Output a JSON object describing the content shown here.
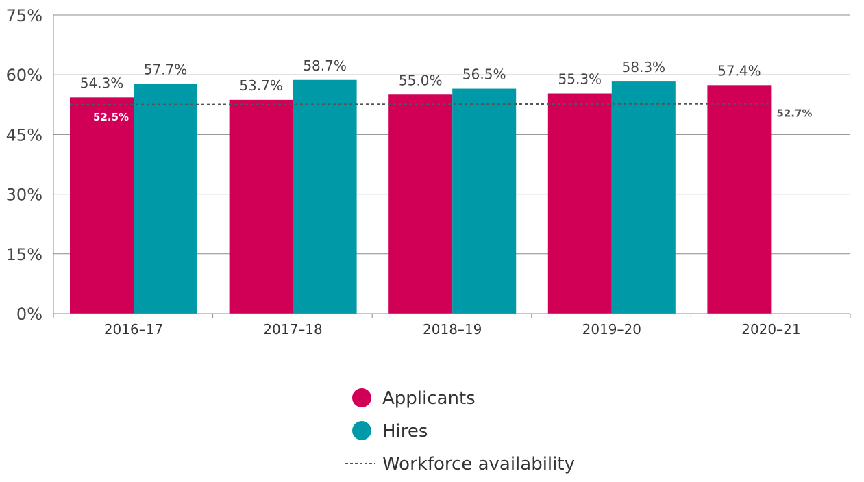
{
  "chart_data": {
    "type": "bar",
    "categories": [
      "2016–17",
      "2017–18",
      "2018–19",
      "2019–20",
      "2020–21"
    ],
    "series": [
      {
        "name": "Applicants",
        "color": "#d10056",
        "values": [
          54.3,
          53.7,
          55.0,
          55.3,
          57.4
        ],
        "labels": [
          "54.3%",
          "53.7%",
          "55.0%",
          "55.3%",
          "57.4%"
        ]
      },
      {
        "name": "Hires",
        "color": "#0099a8",
        "values": [
          57.7,
          58.7,
          56.5,
          58.3,
          null
        ],
        "labels": [
          "57.7%",
          "58.7%",
          "56.5%",
          "58.3%",
          ""
        ]
      }
    ],
    "reference_line": {
      "name": "Workforce availability",
      "style": "dashed",
      "color": "#555555",
      "start_value": 52.5,
      "end_value": 52.7,
      "start_label": "52.5%",
      "end_label": "52.7%"
    },
    "ylim": [
      0,
      75
    ],
    "yticks": [
      0,
      15,
      30,
      45,
      60,
      75
    ],
    "ytick_labels": [
      "0%",
      "15%",
      "30%",
      "45%",
      "60%",
      "75%"
    ],
    "title": "",
    "xlabel": "",
    "ylabel": "",
    "grid": true,
    "legend": {
      "placement": "bottom-center",
      "items": [
        {
          "label": "Applicants",
          "marker": "circle",
          "color": "#d10056"
        },
        {
          "label": "Hires",
          "marker": "circle",
          "color": "#0099a8"
        },
        {
          "label": "Workforce availability",
          "marker": "dashed-line",
          "color": "#555555"
        }
      ]
    }
  }
}
